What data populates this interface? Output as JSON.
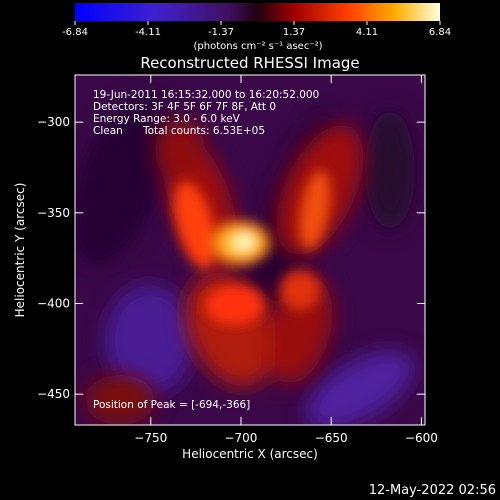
{
  "colorbar": {
    "tick_labels": [
      "-6.84",
      "-4.11",
      "-1.37",
      "1.37",
      "4.11",
      "6.84"
    ],
    "unit_label": "(photons cm⁻² s⁻¹ asec⁻²)"
  },
  "chart_data": {
    "type": "heatmap",
    "title": "Reconstructed RHESSI Image",
    "xlabel": "Heliocentric X (arcsec)",
    "ylabel": "Heliocentric Y (arcsec)",
    "xlim": [
      -792,
      -598
    ],
    "ylim": [
      -467,
      -274
    ],
    "x_ticks": [
      -750,
      -700,
      -650,
      -600
    ],
    "y_ticks": [
      -300,
      -350,
      -400,
      -450
    ],
    "color_range": [
      -6.84,
      6.84
    ],
    "annotations": {
      "time": "19-Jun-2011 16:15:32.000 to 16:20:52.000",
      "detectors": "Detectors: 3F 4F 5F 6F 7F 8F, Att 0",
      "energy": "Energy Range: 3.0 - 6.0 keV",
      "method": "Clean",
      "counts": "Total counts: 6.53E+05",
      "peak": "Position of Peak = [-694,-366]"
    },
    "peak": {
      "x": -694,
      "y": -366,
      "value": 6.84
    }
  },
  "footer": {
    "date": "12-May-2022 02:56"
  }
}
